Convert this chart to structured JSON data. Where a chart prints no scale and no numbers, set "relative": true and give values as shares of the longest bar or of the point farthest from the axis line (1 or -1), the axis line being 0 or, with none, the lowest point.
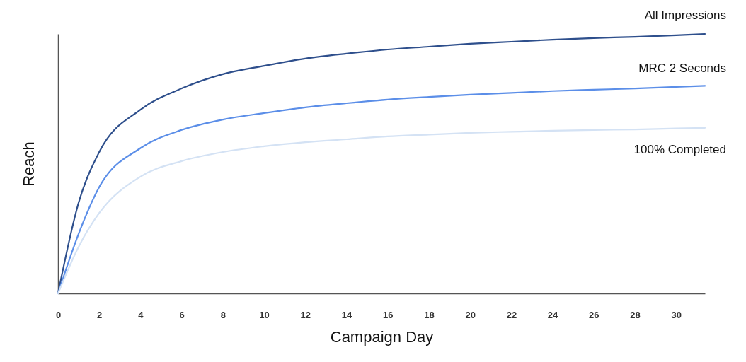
{
  "chart_data": {
    "type": "line",
    "xlabel": "Campaign Day",
    "ylabel": "Reach",
    "relative": true,
    "legend": false,
    "grid": false,
    "marker": "none",
    "line_style": "solid",
    "xlim": [
      0,
      31.4
    ],
    "xticks": [
      0,
      2,
      4,
      6,
      8,
      10,
      12,
      14,
      16,
      18,
      20,
      22,
      24,
      26,
      28,
      30
    ],
    "x": [
      0,
      1,
      2,
      4,
      6,
      8,
      10,
      12,
      14,
      16,
      18,
      20,
      22,
      24,
      26,
      28,
      30,
      31.4
    ],
    "series": [
      {
        "name": "All Impressions",
        "color": "#2e4f8c",
        "values": [
          0,
          0.35,
          0.545,
          0.708,
          0.79,
          0.845,
          0.877,
          0.905,
          0.924,
          0.94,
          0.951,
          0.962,
          0.97,
          0.978,
          0.984,
          0.989,
          0.995,
          1
        ]
      },
      {
        "name": "MRC 2 Seconds",
        "color": "#5b8ee8",
        "values": [
          0,
          0.23,
          0.41,
          0.56,
          0.63,
          0.67,
          0.695,
          0.717,
          0.733,
          0.747,
          0.757,
          0.766,
          0.773,
          0.78,
          0.785,
          0.79,
          0.796,
          0.8
        ]
      },
      {
        "name": "100% Completed",
        "color": "#d4e2f4",
        "values": [
          0,
          0.18,
          0.31,
          0.45,
          0.51,
          0.545,
          0.567,
          0.583,
          0.594,
          0.605,
          0.612,
          0.619,
          0.623,
          0.627,
          0.63,
          0.632,
          0.636,
          0.638
        ]
      }
    ]
  }
}
